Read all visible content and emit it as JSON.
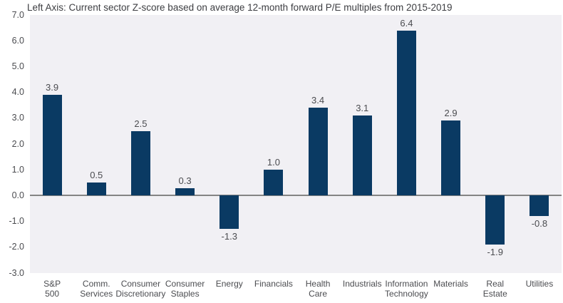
{
  "chart_data": {
    "type": "bar",
    "title": "Left Axis: Current sector Z-score based on average 12-month forward P/E multiples from 2015-2019",
    "categories": [
      "S&P 500",
      "Comm. Services",
      "Consumer Discretionary",
      "Consumer Staples",
      "Energy",
      "Financials",
      "Health Care",
      "Industrials",
      "Information Technology",
      "Materials",
      "Real Estate",
      "Utilities"
    ],
    "values": [
      3.9,
      0.5,
      2.5,
      0.3,
      -1.3,
      1.0,
      3.4,
      3.1,
      6.4,
      2.9,
      -1.9,
      -0.8
    ],
    "value_labels": [
      "3.9",
      "0.5",
      "2.5",
      "0.3",
      "-1.3",
      "1.0",
      "3.4",
      "3.1",
      "6.4",
      "2.9",
      "-1.9",
      "-0.8"
    ],
    "tick_label_lines": [
      [
        "S&P",
        "500"
      ],
      [
        "Comm.",
        "Services"
      ],
      [
        "Consumer",
        "Discretionary"
      ],
      [
        "Consumer",
        "Staples"
      ],
      [
        "Energy"
      ],
      [
        "Financials"
      ],
      [
        "Health",
        "Care"
      ],
      [
        "Industrials"
      ],
      [
        "Information",
        "Technology"
      ],
      [
        "Materials"
      ],
      [
        "Real",
        "Estate"
      ],
      [
        "Utilities"
      ]
    ],
    "y_ticks": [
      "7.0",
      "6.0",
      "5.0",
      "4.0",
      "3.0",
      "2.0",
      "1.0",
      "0.0",
      "-1.0",
      "-2.0",
      "-3.0"
    ],
    "ylim": [
      -3.0,
      7.0
    ],
    "grid": false,
    "legend": "none",
    "xlabel": "",
    "ylabel": "",
    "colors": {
      "bar": "#0a3a63",
      "plot_background": "#f1f0f4",
      "zero_line": "#848484",
      "text": "#4b4c50",
      "title_text": "#3c3d41"
    }
  }
}
